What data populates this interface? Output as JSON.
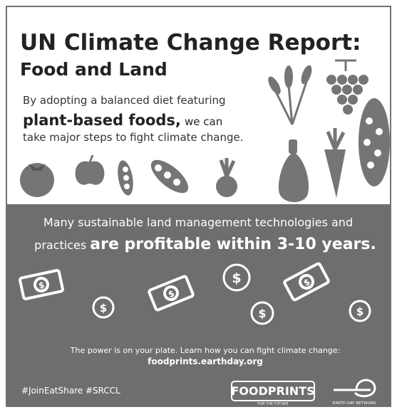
{
  "header": {
    "title_line1": "UN Climate Change Report:",
    "title_line2": "Food and Land"
  },
  "intro": {
    "line1": "By adopting a balanced diet featuring",
    "highlight": "plant-based foods,",
    "line2_rest": "we can",
    "line3": "take major steps to fight climate change."
  },
  "banner": {
    "line1": "Many sustainable land management technologies and",
    "line2_lead": "practices",
    "line2_highlight": "are profitable within 3-10 years."
  },
  "icons": {
    "dollar_symbol": "$"
  },
  "footer": {
    "note": "The power is on your plate. Learn how you can fight climate change:",
    "url": "foodprints.earthday.org",
    "hashtags": "#JoinEatShare #SRCCL"
  },
  "logos": {
    "foodprints": "FOODPRINTS",
    "foodprints_tagline": "FOR THE FUTURE",
    "edn": "EARTH DAY NETWORK"
  }
}
